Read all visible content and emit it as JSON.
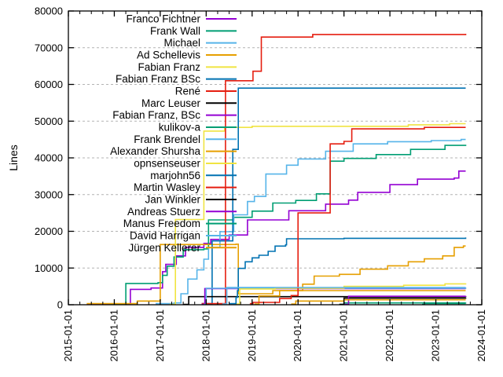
{
  "page": {
    "background_color": "#ffffff",
    "border_color": "#000000",
    "grid_color": "#b3b3b3"
  },
  "chart_data": {
    "type": "line",
    "style": "step-after",
    "title": "",
    "xlabel": "",
    "ylabel": "Lines",
    "grid": {
      "y_dashed": true,
      "vertical_grid": false,
      "color": "#b3b3b3"
    },
    "legend": {
      "position": "top-left-inside",
      "text_align": "right"
    },
    "x_axis": {
      "type": "date",
      "min_year": 2015,
      "max_year": 2024,
      "label_rotation_deg": -90,
      "minor_ticks_per_year": 4,
      "tick_labels": [
        "2015-01-01",
        "2016-01-01",
        "2017-01-01",
        "2018-01-01",
        "2019-01-01",
        "2020-01-01",
        "2021-01-01",
        "2022-01-01",
        "2023-01-01",
        "2024-01-01"
      ]
    },
    "y_axis": {
      "min": 0,
      "max": 80000,
      "tick_step": 10000,
      "tick_labels": [
        "0",
        "10000",
        "20000",
        "30000",
        "40000",
        "50000",
        "60000",
        "70000",
        "80000"
      ]
    },
    "series": [
      {
        "name": "Franco Fichtner",
        "color": "#9400d3",
        "points": [
          [
            2015.4,
            100
          ],
          [
            2016.0,
            200
          ],
          [
            2016.35,
            4200
          ],
          [
            2016.8,
            4560
          ],
          [
            2017.05,
            9000
          ],
          [
            2017.12,
            11000
          ],
          [
            2017.35,
            13300
          ],
          [
            2017.55,
            15600
          ],
          [
            2017.95,
            16700
          ],
          [
            2018.1,
            17800
          ],
          [
            2018.5,
            19000
          ],
          [
            2018.9,
            23100
          ],
          [
            2019.8,
            25600
          ],
          [
            2020.6,
            27400
          ],
          [
            2021.1,
            28500
          ],
          [
            2021.3,
            30600
          ],
          [
            2022.0,
            32700
          ],
          [
            2022.6,
            34200
          ],
          [
            2023.4,
            34500
          ],
          [
            2023.5,
            36400
          ],
          [
            2023.65,
            36400
          ]
        ]
      },
      {
        "name": "Frank Wall",
        "color": "#009e73",
        "points": [
          [
            2015.9,
            100
          ],
          [
            2016.25,
            5800
          ],
          [
            2016.95,
            6000
          ],
          [
            2017.05,
            8000
          ],
          [
            2017.15,
            10500
          ],
          [
            2017.3,
            13000
          ],
          [
            2017.5,
            15000
          ],
          [
            2017.95,
            15200
          ],
          [
            2018.05,
            23100
          ],
          [
            2018.6,
            23800
          ],
          [
            2019.0,
            25500
          ],
          [
            2019.45,
            27700
          ],
          [
            2019.95,
            28400
          ],
          [
            2020.4,
            30200
          ],
          [
            2020.7,
            39100
          ],
          [
            2021.0,
            39850
          ],
          [
            2021.7,
            40900
          ],
          [
            2022.45,
            42300
          ],
          [
            2023.2,
            43400
          ],
          [
            2023.65,
            43600
          ]
        ]
      },
      {
        "name": "Michael",
        "color": "#56b4e9",
        "points": [
          [
            2016.9,
            300
          ],
          [
            2017.3,
            500
          ],
          [
            2017.45,
            3000
          ],
          [
            2017.6,
            7000
          ],
          [
            2017.8,
            9500
          ],
          [
            2017.95,
            12400
          ],
          [
            2018.05,
            15600
          ],
          [
            2018.3,
            19900
          ],
          [
            2018.6,
            24500
          ],
          [
            2018.9,
            28100
          ],
          [
            2019.05,
            29500
          ],
          [
            2019.3,
            35600
          ],
          [
            2019.75,
            38000
          ],
          [
            2020.0,
            39700
          ],
          [
            2020.6,
            41800
          ],
          [
            2021.2,
            43800
          ],
          [
            2021.95,
            44400
          ],
          [
            2022.9,
            44700
          ],
          [
            2023.55,
            45000
          ],
          [
            2023.65,
            45000
          ]
        ]
      },
      {
        "name": "Ad Schellevis",
        "color": "#e69f00",
        "points": [
          [
            2015.4,
            300
          ],
          [
            2016.5,
            1000
          ],
          [
            2017.0,
            16400
          ],
          [
            2018.65,
            16500
          ],
          [
            2018.7,
            3000
          ],
          [
            2019.45,
            3850
          ],
          [
            2020.1,
            5600
          ],
          [
            2020.35,
            7800
          ],
          [
            2020.9,
            8270
          ],
          [
            2021.35,
            9700
          ],
          [
            2021.95,
            10600
          ],
          [
            2022.4,
            11700
          ],
          [
            2022.75,
            12500
          ],
          [
            2023.15,
            13300
          ],
          [
            2023.4,
            15600
          ],
          [
            2023.6,
            16000
          ],
          [
            2023.65,
            16000
          ]
        ]
      },
      {
        "name": "Fabian Franz",
        "color": "#f0e442",
        "points": [
          [
            2017.2,
            100
          ],
          [
            2017.33,
            23200
          ],
          [
            2017.92,
            23200
          ],
          [
            2017.95,
            47300
          ],
          [
            2018.4,
            48300
          ],
          [
            2019.0,
            48600
          ],
          [
            2022.4,
            49000
          ],
          [
            2023.3,
            49300
          ],
          [
            2023.65,
            49300
          ]
        ]
      },
      {
        "name": "Fabian Franz BSc",
        "color": "#0072b2",
        "points": [
          [
            2017.9,
            300
          ],
          [
            2018.13,
            17400
          ],
          [
            2018.55,
            17400
          ],
          [
            2018.58,
            42300
          ],
          [
            2018.68,
            42300
          ],
          [
            2018.7,
            59000
          ],
          [
            2023.65,
            59000
          ]
        ]
      },
      {
        "name": "René",
        "color": "#e51e10",
        "points": [
          [
            2017.9,
            300
          ],
          [
            2018.42,
            61000
          ],
          [
            2019.0,
            61000
          ],
          [
            2019.02,
            63600
          ],
          [
            2019.17,
            63600
          ],
          [
            2019.2,
            72900
          ],
          [
            2020.3,
            72900
          ],
          [
            2020.32,
            73600
          ],
          [
            2023.65,
            73800
          ]
        ]
      },
      {
        "name": "Marc Leuser",
        "color": "#000000",
        "points": [
          [
            2017.5,
            100
          ],
          [
            2017.62,
            2200
          ],
          [
            2023.65,
            2300
          ]
        ]
      },
      {
        "name": "Fabian Franz, BSc",
        "color": "#9400d3",
        "points": [
          [
            2017.9,
            100
          ],
          [
            2017.97,
            4400
          ],
          [
            2023.65,
            4400
          ]
        ]
      },
      {
        "name": "kulikov-a",
        "color": "#009e73",
        "points": [
          [
            2020.9,
            100
          ],
          [
            2021.0,
            500
          ],
          [
            2023.65,
            600
          ]
        ]
      },
      {
        "name": "Frank Brendel",
        "color": "#56b4e9",
        "points": [
          [
            2017.95,
            100
          ],
          [
            2018.0,
            4500
          ],
          [
            2023.65,
            4700
          ]
        ]
      },
      {
        "name": "Alexander Shursha",
        "color": "#e69f00",
        "points": [
          [
            2019.05,
            200
          ],
          [
            2019.15,
            2400
          ],
          [
            2019.6,
            3850
          ],
          [
            2023.65,
            3850
          ]
        ]
      },
      {
        "name": "opnsenseuser",
        "color": "#f0e442",
        "points": [
          [
            2018.65,
            200
          ],
          [
            2018.73,
            4300
          ],
          [
            2019.5,
            4500
          ],
          [
            2021.0,
            5000
          ],
          [
            2022.3,
            5300
          ],
          [
            2023.2,
            5700
          ],
          [
            2023.65,
            5840
          ]
        ]
      },
      {
        "name": "marjohn56",
        "color": "#0072b2",
        "points": [
          [
            2018.5,
            300
          ],
          [
            2018.65,
            2000
          ],
          [
            2018.68,
            3850
          ],
          [
            2018.7,
            9900
          ],
          [
            2018.85,
            11700
          ],
          [
            2019.0,
            12760
          ],
          [
            2019.15,
            13480
          ],
          [
            2019.35,
            14550
          ],
          [
            2019.5,
            15970
          ],
          [
            2019.73,
            16320
          ],
          [
            2019.75,
            17970
          ],
          [
            2021.0,
            18100
          ],
          [
            2023.65,
            18300
          ]
        ]
      },
      {
        "name": "Martin Wasley",
        "color": "#e51e10",
        "points": [
          [
            2018.95,
            300
          ],
          [
            2019.02,
            640
          ],
          [
            2019.6,
            1700
          ],
          [
            2019.85,
            2500
          ],
          [
            2020.0,
            25000
          ],
          [
            2020.68,
            25000
          ],
          [
            2020.7,
            43800
          ],
          [
            2021.0,
            44500
          ],
          [
            2021.17,
            47900
          ],
          [
            2022.75,
            48300
          ],
          [
            2023.65,
            48300
          ]
        ]
      },
      {
        "name": "Jan Winkler",
        "color": "#000000",
        "points": [
          [
            2020.9,
            100
          ],
          [
            2021.0,
            1800
          ],
          [
            2023.65,
            1900
          ]
        ]
      },
      {
        "name": "Andreas Stuerz",
        "color": "#9400d3",
        "points": [
          [
            2021.0,
            100
          ],
          [
            2021.1,
            2300
          ],
          [
            2023.65,
            2400
          ]
        ]
      },
      {
        "name": "Manus Freedom",
        "color": "#009e73",
        "points": [
          [
            2022.7,
            100
          ],
          [
            2022.75,
            350
          ],
          [
            2023.65,
            350
          ]
        ]
      },
      {
        "name": "David Harrigan",
        "color": "#56b4e9",
        "points": [
          [
            2018.35,
            200
          ],
          [
            2018.45,
            4700
          ],
          [
            2023.65,
            4700
          ]
        ]
      },
      {
        "name": "Jürgen Kellerer",
        "color": "#e69f00",
        "points": [
          [
            2019.85,
            200
          ],
          [
            2019.95,
            1000
          ],
          [
            2021.0,
            1350
          ],
          [
            2023.65,
            1350
          ]
        ]
      }
    ]
  }
}
